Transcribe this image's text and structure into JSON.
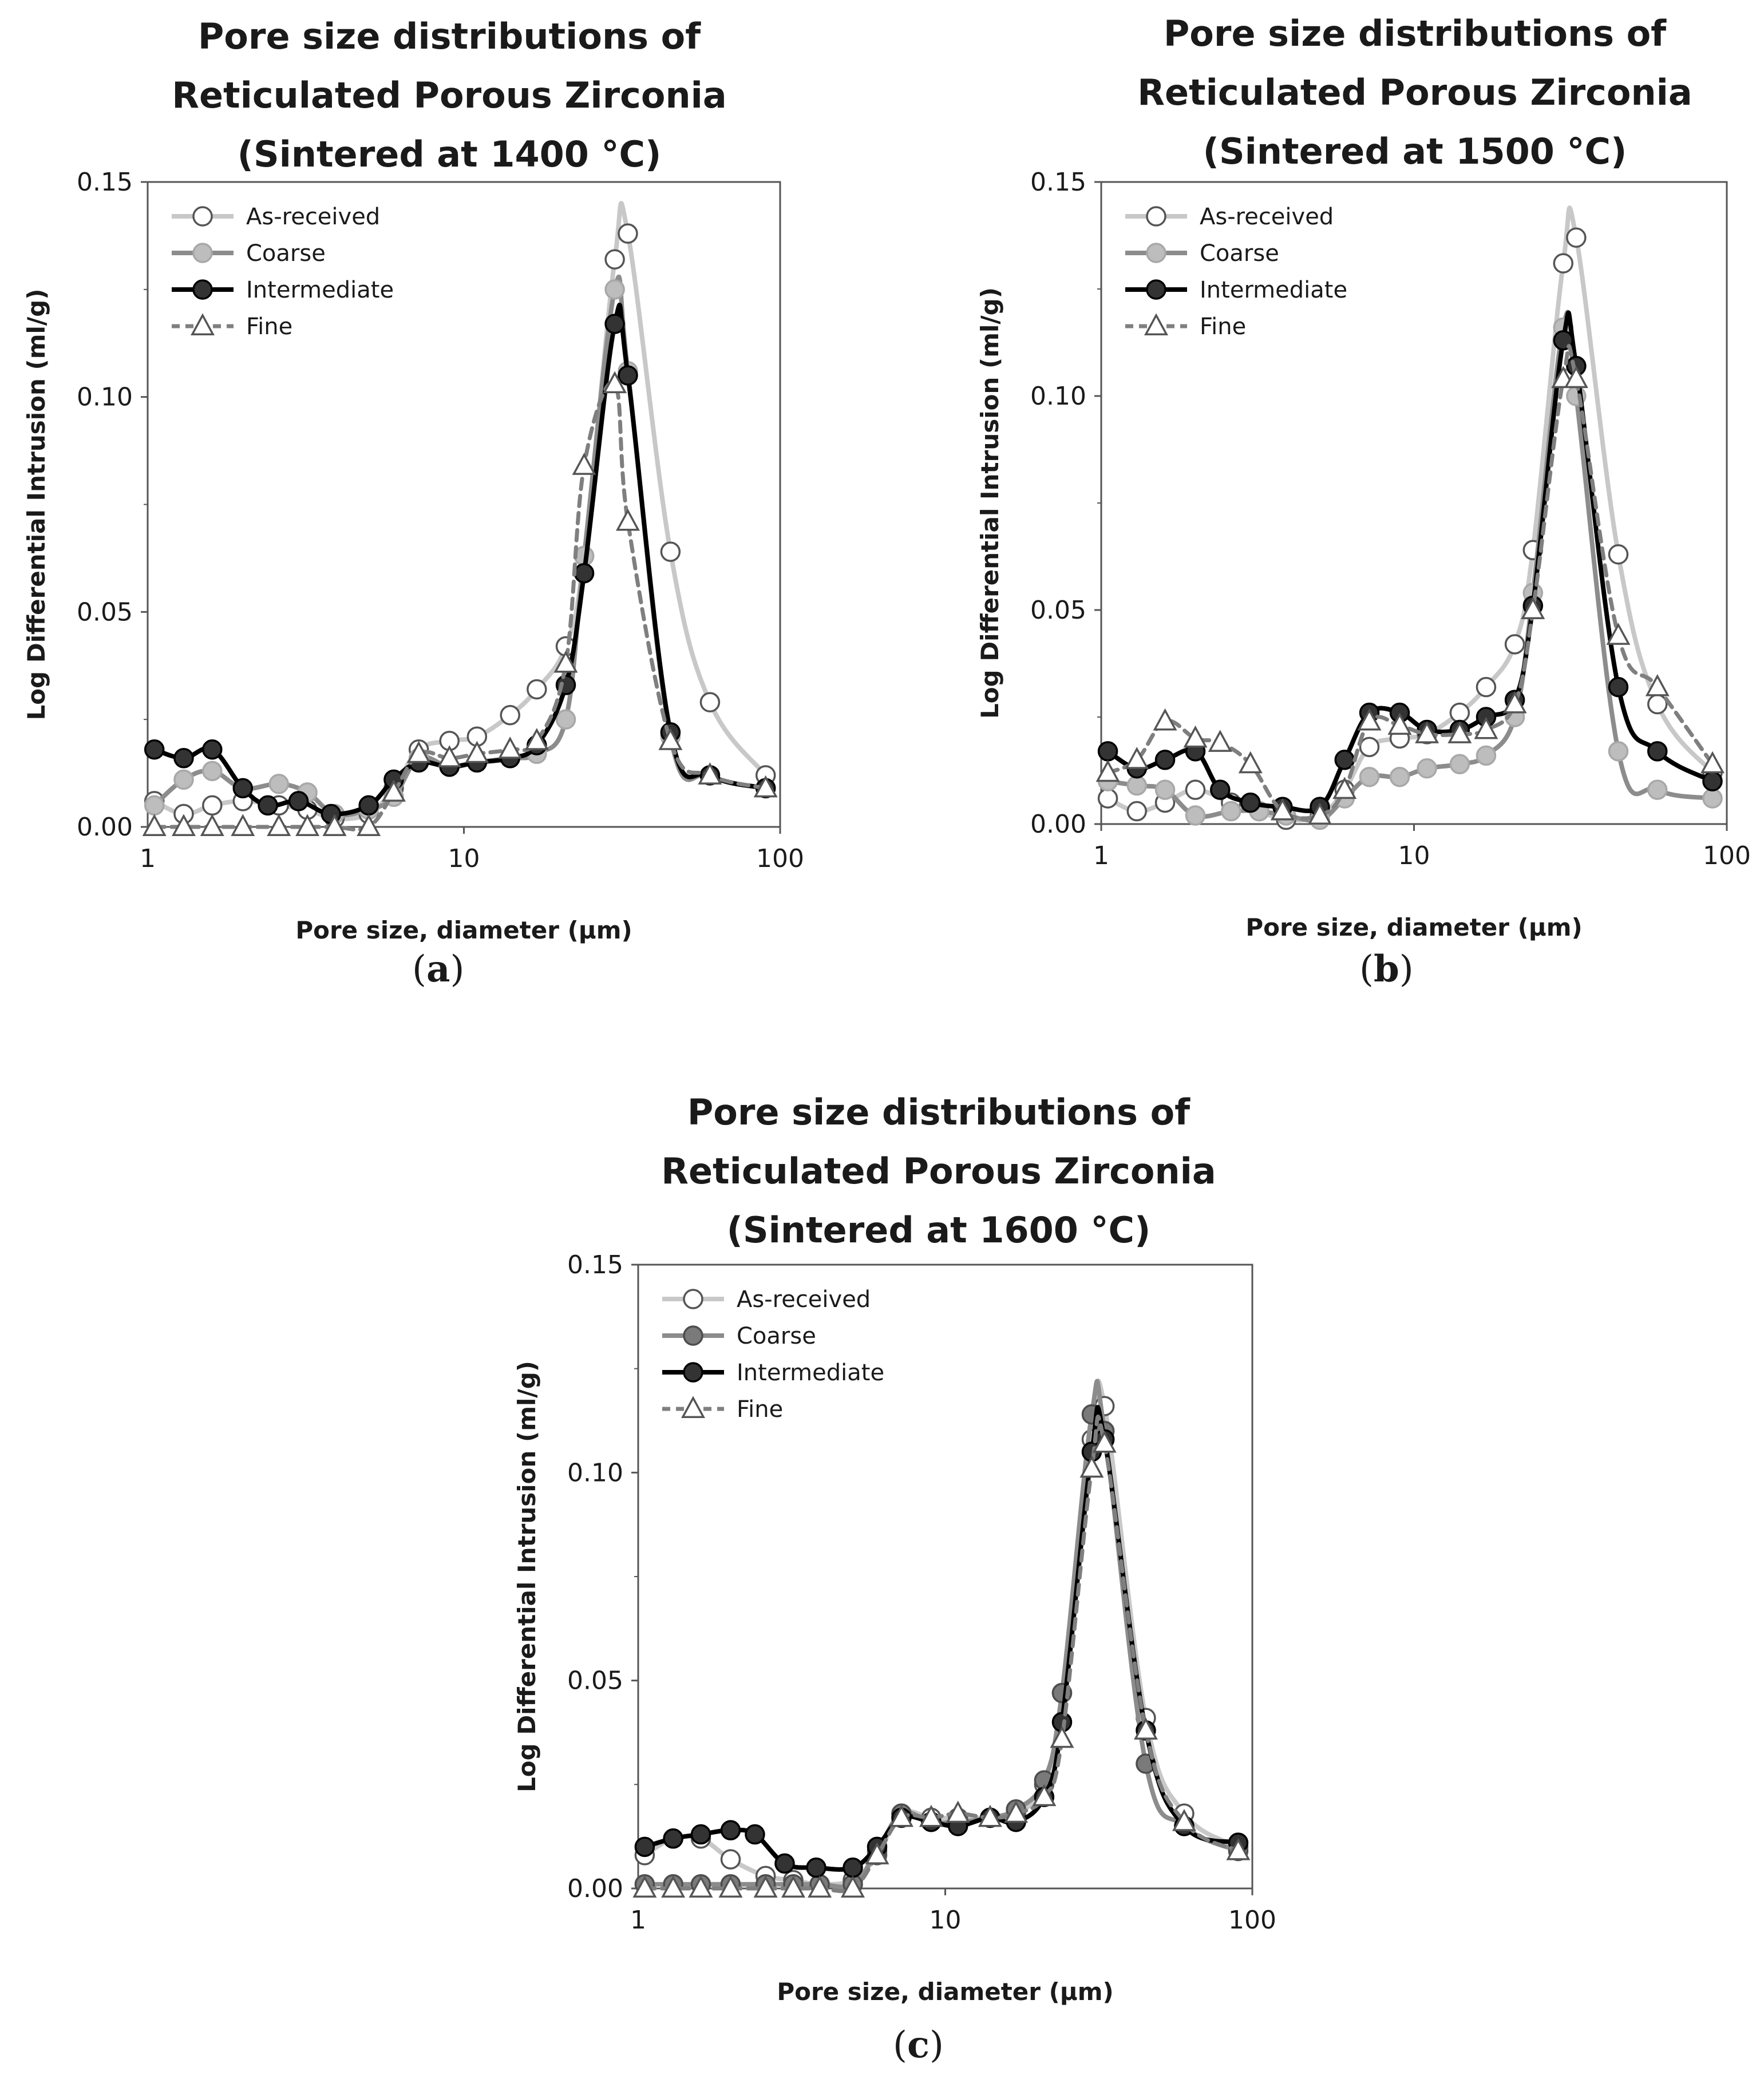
{
  "figure": {
    "colors": {
      "as_received": "#c8c8c8",
      "coarse": "#8c8c8c",
      "coarse_marker_light": "#bdbdbd",
      "coarse_marker_dark": "#7a7a7a",
      "intermediate": "#000000",
      "intermediate_marker": "#333333",
      "fine": "#7f7f7f"
    }
  },
  "chart_data": [
    {
      "id": "a",
      "type": "line",
      "caption": "a",
      "title_lines": [
        "Pore size distributions of",
        "Reticulated Porous Zirconia",
        "(Sintered at 1400 °C)"
      ],
      "xlabel": "Pore size, diameter (µm)",
      "ylabel": "Log Differential Intrusion (ml/g)",
      "xscale": "log",
      "xlim": [
        1,
        100
      ],
      "ylim": [
        0,
        0.15
      ],
      "xticks": [
        1,
        10,
        100
      ],
      "xtick_labels": [
        "1",
        "10",
        "100"
      ],
      "yticks": [
        0,
        0.05,
        0.1,
        0.15
      ],
      "ytick_labels": [
        "0.00",
        "0.05",
        "0.10",
        "0.15"
      ],
      "legend": {
        "position": "top-left",
        "entries": [
          "As-received",
          "Coarse",
          "Intermediate",
          "Fine"
        ]
      },
      "series": [
        {
          "name": "As-received",
          "marker": "open-circle",
          "x": [
            1.05,
            1.3,
            1.6,
            2.0,
            2.6,
            3.2,
            3.9,
            5.0,
            6.0,
            7.2,
            9.0,
            11.0,
            14.0,
            17.0,
            21.0,
            24.0,
            30.0,
            33.0,
            45.0,
            60.0,
            90.0
          ],
          "y": [
            0.006,
            0.003,
            0.005,
            0.006,
            0.005,
            0.004,
            0.002,
            0.003,
            0.009,
            0.018,
            0.02,
            0.021,
            0.026,
            0.032,
            0.042,
            0.063,
            0.132,
            0.138,
            0.064,
            0.029,
            0.012
          ]
        },
        {
          "name": "Coarse",
          "marker": "light-gray-circle",
          "x": [
            1.05,
            1.3,
            1.6,
            2.0,
            2.6,
            3.2,
            3.9,
            5.0,
            6.0,
            7.2,
            9.0,
            11.0,
            14.0,
            17.0,
            21.0,
            24.0,
            30.0,
            33.0,
            45.0,
            60.0,
            90.0
          ],
          "y": [
            0.005,
            0.011,
            0.013,
            0.009,
            0.01,
            0.008,
            0.003,
            0.004,
            0.007,
            0.016,
            0.014,
            0.015,
            0.016,
            0.017,
            0.025,
            0.063,
            0.125,
            0.106,
            0.021,
            0.012,
            0.009
          ]
        },
        {
          "name": "Intermediate",
          "marker": "filled-circle",
          "x": [
            1.05,
            1.3,
            1.6,
            2.0,
            2.4,
            3.0,
            3.8,
            5.0,
            6.0,
            7.2,
            9.0,
            11.0,
            14.0,
            17.0,
            21.0,
            24.0,
            30.0,
            33.0,
            45.0,
            60.0,
            90.0
          ],
          "y": [
            0.018,
            0.016,
            0.018,
            0.009,
            0.005,
            0.006,
            0.003,
            0.005,
            0.011,
            0.015,
            0.014,
            0.015,
            0.016,
            0.019,
            0.033,
            0.059,
            0.117,
            0.105,
            0.022,
            0.012,
            0.009
          ]
        },
        {
          "name": "Fine",
          "marker": "open-triangle",
          "x": [
            1.05,
            1.3,
            1.6,
            2.0,
            2.6,
            3.2,
            3.9,
            5.0,
            6.0,
            7.2,
            9.0,
            11.0,
            14.0,
            17.0,
            21.0,
            24.0,
            30.0,
            33.0,
            45.0,
            60.0,
            90.0
          ],
          "y": [
            0.0,
            0.0,
            0.0,
            0.0,
            0.0,
            0.0,
            0.0,
            0.0,
            0.008,
            0.017,
            0.016,
            0.017,
            0.018,
            0.02,
            0.038,
            0.084,
            0.103,
            0.071,
            0.02,
            0.012,
            0.009
          ]
        }
      ]
    },
    {
      "id": "b",
      "type": "line",
      "caption": "b",
      "title_lines": [
        "Pore size distributions of",
        "Reticulated Porous Zirconia",
        "(Sintered at 1500 °C)"
      ],
      "xlabel": "Pore size, diameter (µm)",
      "ylabel": "Log Differential Intrusion (ml/g)",
      "xscale": "log",
      "xlim": [
        1,
        100
      ],
      "ylim": [
        0,
        0.15
      ],
      "xticks": [
        1,
        10,
        100
      ],
      "xtick_labels": [
        "1",
        "10",
        "100"
      ],
      "yticks": [
        0,
        0.05,
        0.1,
        0.15
      ],
      "ytick_labels": [
        "0.00",
        "0.05",
        "0.10",
        "0.15"
      ],
      "legend": {
        "position": "top-left",
        "entries": [
          "As-received",
          "Coarse",
          "Intermediate",
          "Fine"
        ]
      },
      "series": [
        {
          "name": "As-received",
          "marker": "open-circle",
          "x": [
            1.05,
            1.3,
            1.6,
            2.0,
            2.6,
            3.2,
            3.9,
            5.0,
            6.0,
            7.2,
            9.0,
            11.0,
            14.0,
            17.0,
            21.0,
            24.0,
            30.0,
            33.0,
            45.0,
            60.0,
            90.0
          ],
          "y": [
            0.006,
            0.003,
            0.005,
            0.008,
            0.005,
            0.003,
            0.001,
            0.002,
            0.008,
            0.018,
            0.02,
            0.021,
            0.026,
            0.032,
            0.042,
            0.064,
            0.131,
            0.137,
            0.063,
            0.028,
            0.012
          ]
        },
        {
          "name": "Coarse",
          "marker": "light-gray-circle",
          "x": [
            1.05,
            1.3,
            1.6,
            2.0,
            2.6,
            3.2,
            3.9,
            5.0,
            6.0,
            7.2,
            9.0,
            11.0,
            14.0,
            17.0,
            21.0,
            24.0,
            30.0,
            33.0,
            45.0,
            60.0,
            90.0
          ],
          "y": [
            0.01,
            0.009,
            0.008,
            0.002,
            0.003,
            0.003,
            0.002,
            0.001,
            0.006,
            0.011,
            0.011,
            0.013,
            0.014,
            0.016,
            0.025,
            0.054,
            0.116,
            0.1,
            0.017,
            0.008,
            0.006
          ]
        },
        {
          "name": "Intermediate",
          "marker": "filled-circle",
          "x": [
            1.05,
            1.3,
            1.6,
            2.0,
            2.4,
            3.0,
            3.8,
            5.0,
            6.0,
            7.2,
            9.0,
            11.0,
            14.0,
            17.0,
            21.0,
            24.0,
            30.0,
            33.0,
            45.0,
            60.0,
            90.0
          ],
          "y": [
            0.017,
            0.013,
            0.015,
            0.017,
            0.008,
            0.005,
            0.004,
            0.004,
            0.015,
            0.026,
            0.026,
            0.022,
            0.022,
            0.025,
            0.029,
            0.051,
            0.113,
            0.107,
            0.032,
            0.017,
            0.01
          ]
        },
        {
          "name": "Fine",
          "marker": "open-triangle",
          "x": [
            1.05,
            1.3,
            1.6,
            2.0,
            2.4,
            3.0,
            3.8,
            5.0,
            6.0,
            7.2,
            9.0,
            11.0,
            14.0,
            17.0,
            21.0,
            24.0,
            30.0,
            33.0,
            45.0,
            60.0,
            90.0
          ],
          "y": [
            0.012,
            0.015,
            0.024,
            0.02,
            0.019,
            0.014,
            0.003,
            0.002,
            0.008,
            0.024,
            0.023,
            0.021,
            0.021,
            0.022,
            0.028,
            0.05,
            0.104,
            0.104,
            0.044,
            0.032,
            0.014
          ]
        }
      ]
    },
    {
      "id": "c",
      "type": "line",
      "caption": "c",
      "title_lines": [
        "Pore size distributions of",
        "Reticulated Porous Zirconia",
        "(Sintered at 1600 °C)"
      ],
      "xlabel": "Pore size, diameter (µm)",
      "ylabel": "Log Differential Intrusion (ml/g)",
      "xscale": "log",
      "xlim": [
        1,
        100
      ],
      "ylim": [
        0,
        0.15
      ],
      "xticks": [
        1,
        10,
        100
      ],
      "xtick_labels": [
        "1",
        "10",
        "100"
      ],
      "yticks": [
        0,
        0.05,
        0.1,
        0.15
      ],
      "ytick_labels": [
        "0.00",
        "0.05",
        "0.10",
        "0.15"
      ],
      "legend": {
        "position": "top-left",
        "entries": [
          "As-received",
          "Coarse",
          "Intermediate",
          "Fine"
        ]
      },
      "series": [
        {
          "name": "As-received",
          "marker": "open-circle",
          "x": [
            1.05,
            1.3,
            1.6,
            2.0,
            2.6,
            3.2,
            3.9,
            5.0,
            6.0,
            7.2,
            9.0,
            11.0,
            14.0,
            17.0,
            21.0,
            24.0,
            30.0,
            33.0,
            45.0,
            60.0,
            90.0
          ],
          "y": [
            0.008,
            0.012,
            0.012,
            0.007,
            0.003,
            0.002,
            0.001,
            0.002,
            0.008,
            0.018,
            0.017,
            0.017,
            0.017,
            0.018,
            0.025,
            0.047,
            0.108,
            0.116,
            0.041,
            0.018,
            0.01
          ]
        },
        {
          "name": "Coarse",
          "marker": "dark-gray-circle",
          "x": [
            1.05,
            1.3,
            1.6,
            2.0,
            2.6,
            3.2,
            3.9,
            5.0,
            6.0,
            7.2,
            9.0,
            11.0,
            14.0,
            17.0,
            21.0,
            24.0,
            30.0,
            33.0,
            45.0,
            60.0,
            90.0
          ],
          "y": [
            0.001,
            0.001,
            0.001,
            0.001,
            0.001,
            0.001,
            0.001,
            0.001,
            0.009,
            0.018,
            0.016,
            0.016,
            0.017,
            0.019,
            0.026,
            0.047,
            0.114,
            0.11,
            0.03,
            0.015,
            0.009
          ]
        },
        {
          "name": "Intermediate",
          "marker": "filled-circle",
          "x": [
            1.05,
            1.3,
            1.6,
            2.0,
            2.4,
            3.0,
            3.8,
            5.0,
            6.0,
            7.2,
            9.0,
            11.0,
            14.0,
            17.0,
            21.0,
            24.0,
            30.0,
            33.0,
            45.0,
            60.0,
            90.0
          ],
          "y": [
            0.01,
            0.012,
            0.013,
            0.014,
            0.013,
            0.006,
            0.005,
            0.005,
            0.01,
            0.017,
            0.016,
            0.015,
            0.017,
            0.016,
            0.022,
            0.04,
            0.105,
            0.108,
            0.038,
            0.015,
            0.011
          ]
        },
        {
          "name": "Fine",
          "marker": "open-triangle",
          "x": [
            1.05,
            1.3,
            1.6,
            2.0,
            2.6,
            3.2,
            3.9,
            5.0,
            6.0,
            7.2,
            9.0,
            11.0,
            14.0,
            17.0,
            21.0,
            24.0,
            30.0,
            33.0,
            45.0,
            60.0,
            90.0
          ],
          "y": [
            0.0,
            0.0,
            0.0,
            0.0,
            0.0,
            0.0,
            0.0,
            0.0,
            0.008,
            0.017,
            0.017,
            0.018,
            0.017,
            0.018,
            0.022,
            0.036,
            0.101,
            0.107,
            0.038,
            0.016,
            0.009
          ]
        }
      ]
    }
  ]
}
